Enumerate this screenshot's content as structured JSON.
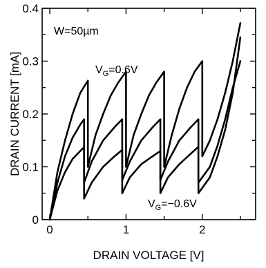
{
  "chart_data": {
    "type": "line",
    "xlabel": "DRAIN VOLTAGE  [V]",
    "ylabel": "DRAIN CURRENT  [mA]",
    "xlim": [
      -0.1,
      2.7
    ],
    "ylim": [
      0,
      0.4
    ],
    "xticks": [
      0,
      1,
      2
    ],
    "xtick_labels": [
      "0",
      "1",
      "2"
    ],
    "xticks_minor": [
      0.5,
      1.5,
      2.5
    ],
    "yticks": [
      0,
      0.1,
      0.2,
      0.3,
      0.4
    ],
    "ytick_labels": [
      "0",
      "0.1",
      "0.2",
      "0.3",
      "0.4"
    ],
    "grid": false,
    "annotations": {
      "width_label": "W=50µm",
      "top_curve_label": {
        "main": "V",
        "sub": "G",
        "rest": "=0.6V"
      },
      "bottom_curve_label": {
        "main": "V",
        "sub": "G",
        "rest": "=−0.6V"
      }
    },
    "series": [
      {
        "points": [
          [
            0,
            0
          ],
          [
            0.1,
            0.09
          ],
          [
            0.2,
            0.15
          ],
          [
            0.3,
            0.2
          ],
          [
            0.4,
            0.24
          ],
          [
            0.5,
            0.263
          ],
          [
            0.5,
            0.1
          ],
          [
            0.6,
            0.16
          ],
          [
            0.7,
            0.2
          ],
          [
            0.8,
            0.235
          ],
          [
            0.9,
            0.26
          ],
          [
            1.0,
            0.28
          ],
          [
            1.0,
            0.1
          ],
          [
            1.1,
            0.16
          ],
          [
            1.2,
            0.2
          ],
          [
            1.3,
            0.235
          ],
          [
            1.4,
            0.26
          ],
          [
            1.5,
            0.28
          ],
          [
            1.5,
            0.1
          ],
          [
            1.6,
            0.16
          ],
          [
            1.7,
            0.21
          ],
          [
            1.8,
            0.25
          ],
          [
            1.9,
            0.28
          ],
          [
            2.0,
            0.3
          ],
          [
            2.0,
            0.12
          ],
          [
            2.1,
            0.15
          ],
          [
            2.2,
            0.19
          ],
          [
            2.3,
            0.24
          ],
          [
            2.4,
            0.3
          ],
          [
            2.5,
            0.372
          ]
        ]
      },
      {
        "points": [
          [
            0,
            0
          ],
          [
            0.1,
            0.07
          ],
          [
            0.2,
            0.12
          ],
          [
            0.3,
            0.155
          ],
          [
            0.4,
            0.18
          ],
          [
            0.45,
            0.19
          ],
          [
            0.45,
            0.07
          ],
          [
            0.55,
            0.11
          ],
          [
            0.7,
            0.15
          ],
          [
            0.85,
            0.175
          ],
          [
            0.95,
            0.19
          ],
          [
            0.95,
            0.075
          ],
          [
            1.05,
            0.11
          ],
          [
            1.2,
            0.15
          ],
          [
            1.35,
            0.175
          ],
          [
            1.45,
            0.19
          ],
          [
            1.45,
            0.075
          ],
          [
            1.55,
            0.11
          ],
          [
            1.7,
            0.15
          ],
          [
            1.85,
            0.175
          ],
          [
            1.95,
            0.19
          ],
          [
            1.95,
            0.07
          ],
          [
            2.1,
            0.1
          ],
          [
            2.2,
            0.14
          ],
          [
            2.3,
            0.19
          ],
          [
            2.4,
            0.25
          ],
          [
            2.5,
            0.3
          ]
        ]
      },
      {
        "points": [
          [
            0,
            0
          ],
          [
            0.1,
            0.055
          ],
          [
            0.2,
            0.09
          ],
          [
            0.3,
            0.115
          ],
          [
            0.4,
            0.13
          ],
          [
            0.45,
            0.137
          ],
          [
            0.45,
            0.04
          ],
          [
            0.55,
            0.07
          ],
          [
            0.7,
            0.1
          ],
          [
            0.85,
            0.12
          ],
          [
            0.95,
            0.132
          ],
          [
            0.95,
            0.05
          ],
          [
            1.05,
            0.08
          ],
          [
            1.2,
            0.105
          ],
          [
            1.35,
            0.12
          ],
          [
            1.45,
            0.13
          ],
          [
            1.45,
            0.05
          ],
          [
            1.55,
            0.08
          ],
          [
            1.7,
            0.105
          ],
          [
            1.85,
            0.125
          ],
          [
            1.95,
            0.138
          ],
          [
            1.95,
            0.05
          ],
          [
            2.1,
            0.08
          ],
          [
            2.2,
            0.12
          ],
          [
            2.3,
            0.17
          ],
          [
            2.4,
            0.24
          ],
          [
            2.5,
            0.345
          ]
        ]
      }
    ]
  }
}
